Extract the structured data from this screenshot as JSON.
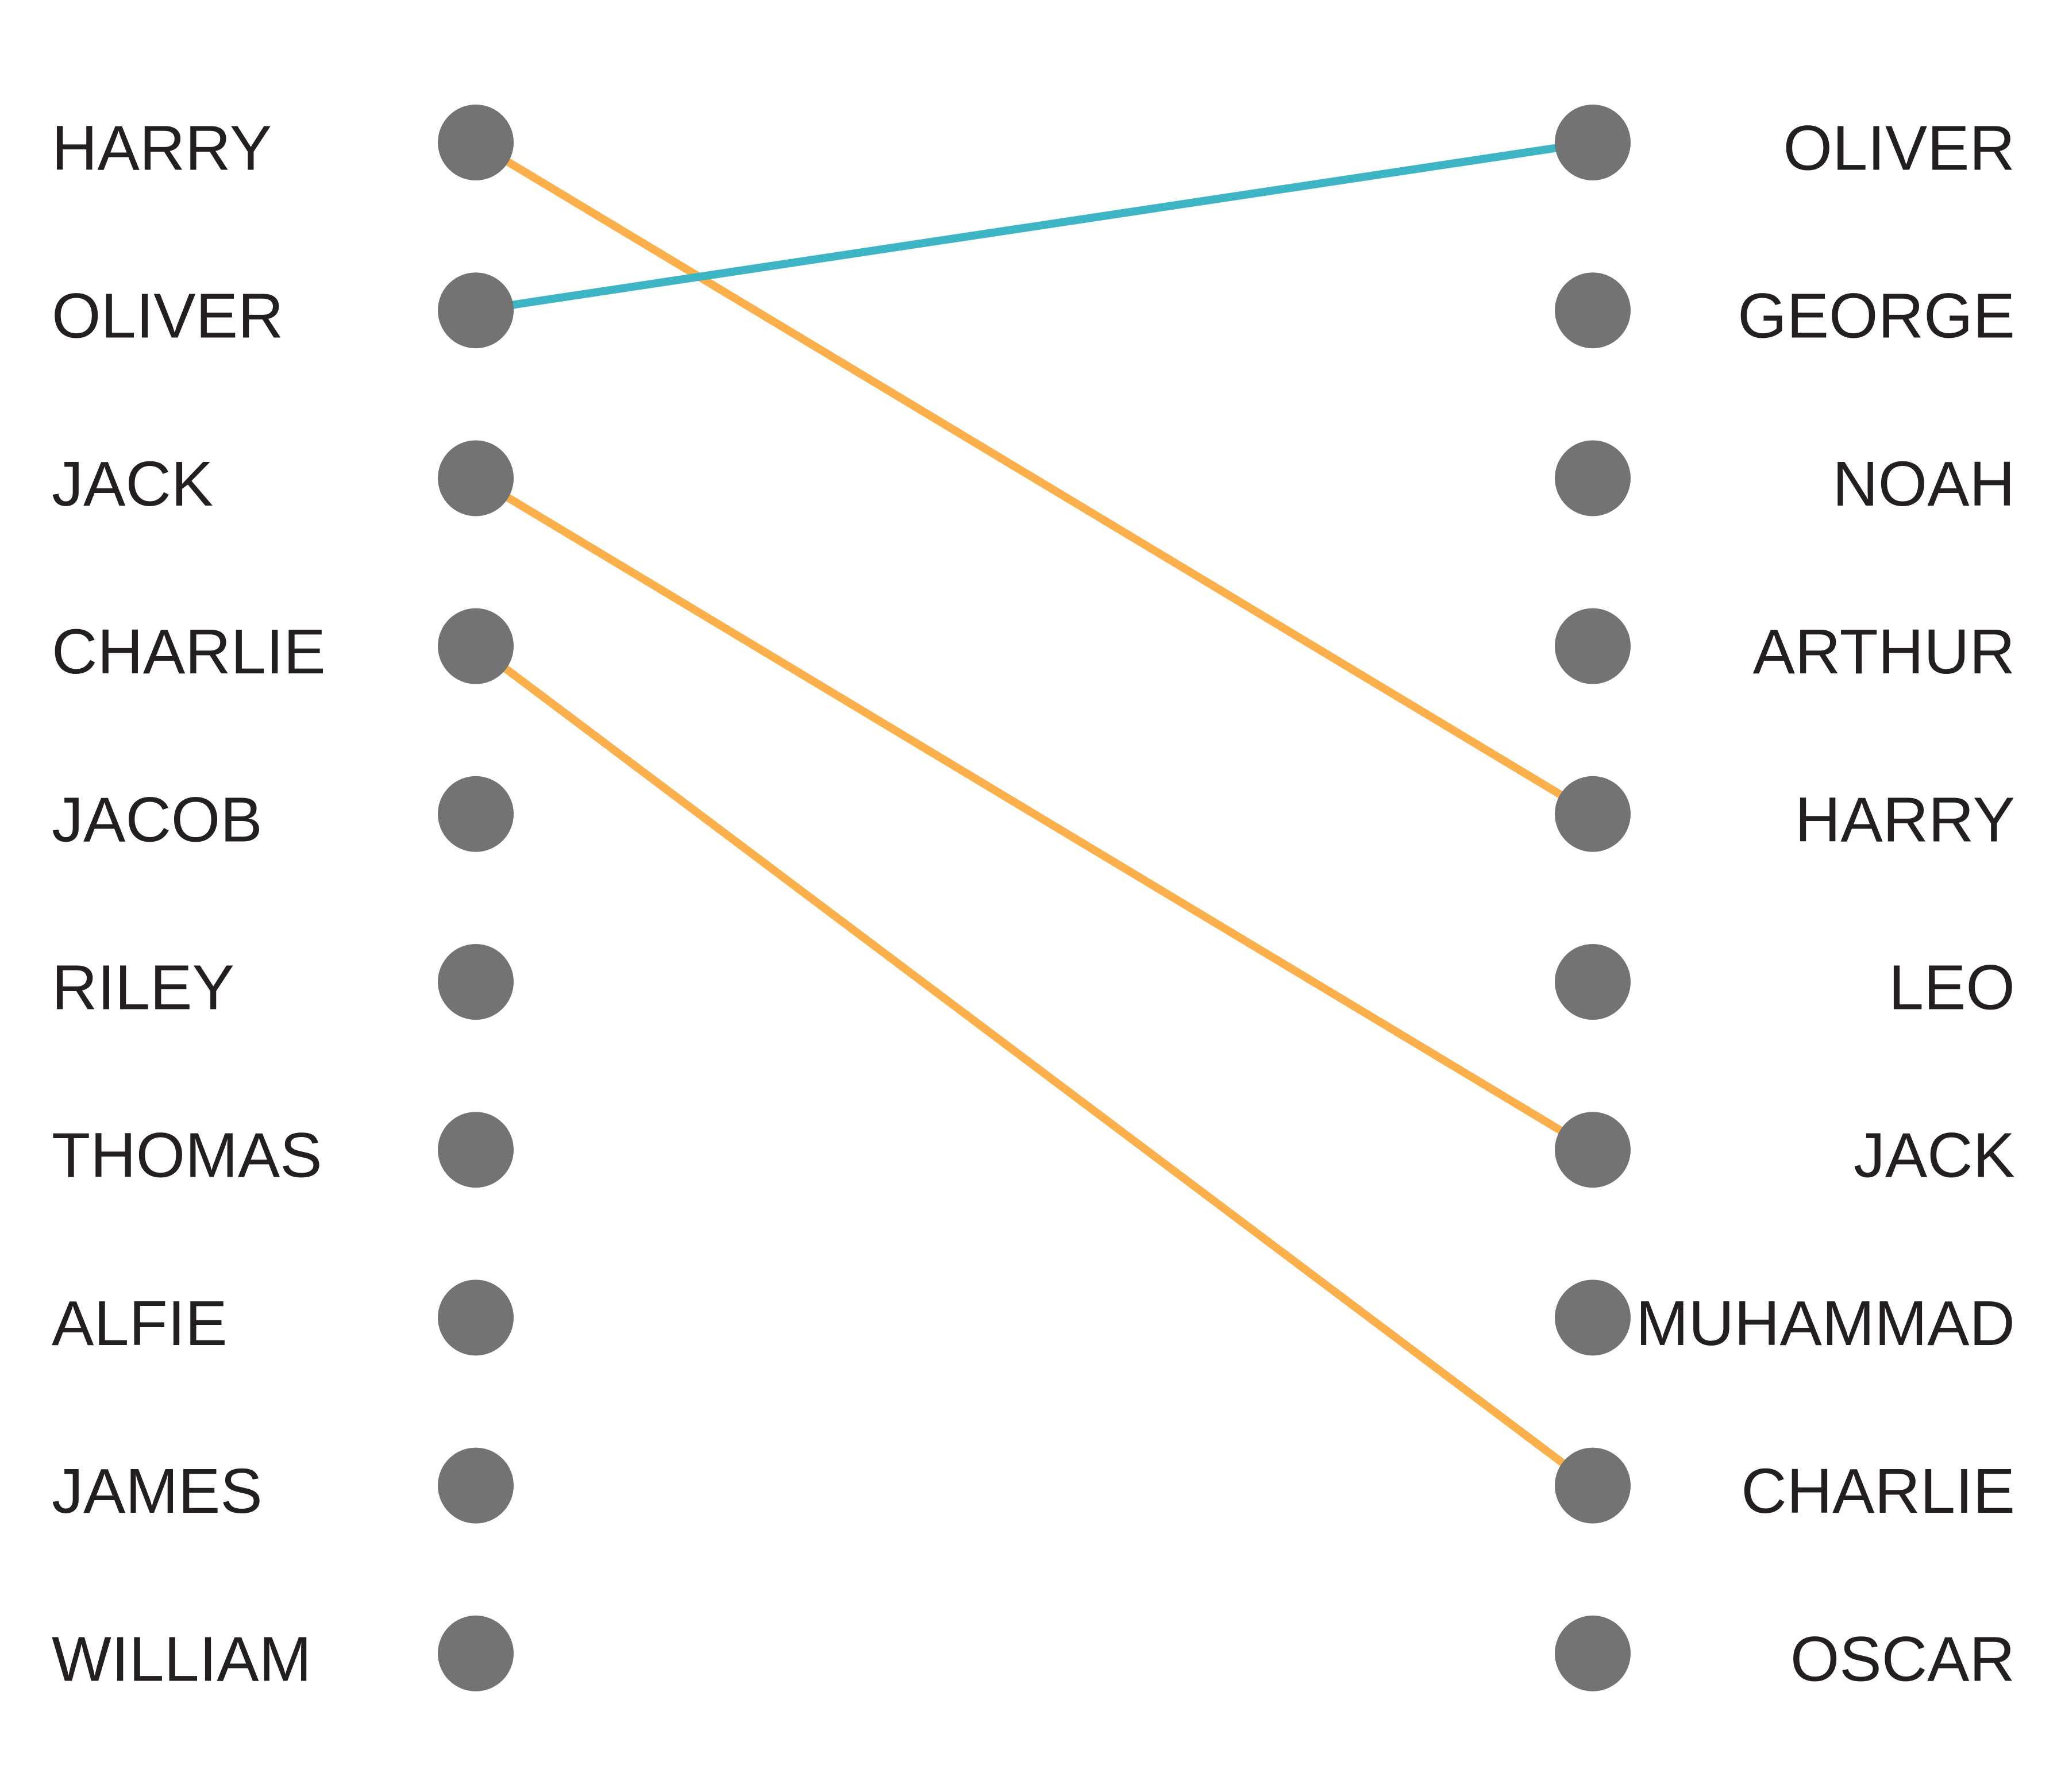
{
  "chart_data": {
    "type": "slope",
    "colors": {
      "dot": "#737373",
      "rise": "#3db5c4",
      "fall": "#fbb04c",
      "text": "#231f20"
    },
    "left": {
      "names": [
        "HARRY",
        "OLIVER",
        "JACK",
        "CHARLIE",
        "JACOB",
        "RILEY",
        "THOMAS",
        "ALFIE",
        "JAMES",
        "WILLIAM"
      ]
    },
    "right": {
      "names": [
        "OLIVER",
        "GEORGE",
        "NOAH",
        "ARTHUR",
        "HARRY",
        "LEO",
        "JACK",
        "MUHAMMAD",
        "CHARLIE",
        "OSCAR"
      ]
    },
    "connections": [
      {
        "name": "HARRY",
        "from_rank": 1,
        "to_rank": 5,
        "trend": "fall"
      },
      {
        "name": "OLIVER",
        "from_rank": 2,
        "to_rank": 1,
        "trend": "rise"
      },
      {
        "name": "JACK",
        "from_rank": 3,
        "to_rank": 7,
        "trend": "fall"
      },
      {
        "name": "CHARLIE",
        "from_rank": 4,
        "to_rank": 9,
        "trend": "fall"
      }
    ]
  }
}
